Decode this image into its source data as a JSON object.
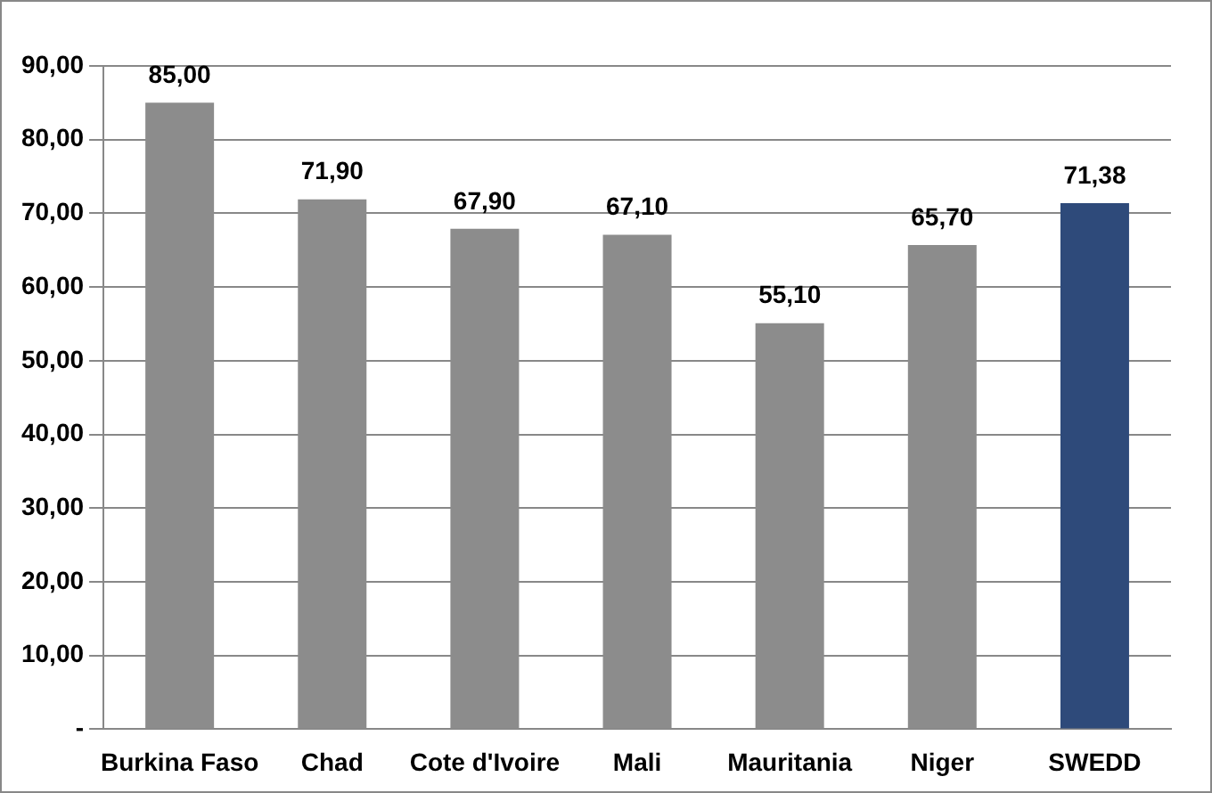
{
  "chart_data": {
    "type": "bar",
    "categories": [
      "Burkina Faso",
      "Chad",
      "Cote d'Ivoire",
      "Mali",
      "Mauritania",
      "Niger",
      "SWEDD"
    ],
    "values": [
      85.0,
      71.9,
      67.9,
      67.1,
      55.1,
      65.7,
      71.38
    ],
    "value_labels": [
      "85,00",
      "71,90",
      "67,90",
      "67,10",
      "55,10",
      "65,70",
      "71,38"
    ],
    "colors": [
      "#8c8c8c",
      "#8c8c8c",
      "#8c8c8c",
      "#8c8c8c",
      "#8c8c8c",
      "#8c8c8c",
      "#2e4a7a"
    ],
    "ylim": [
      0,
      90
    ],
    "yticks": [
      {
        "value": 0,
        "label": "-"
      },
      {
        "value": 10,
        "label": "10,00"
      },
      {
        "value": 20,
        "label": "20,00"
      },
      {
        "value": 30,
        "label": "30,00"
      },
      {
        "value": 40,
        "label": "40,00"
      },
      {
        "value": 50,
        "label": "50,00"
      },
      {
        "value": 60,
        "label": "60,00"
      },
      {
        "value": 70,
        "label": "70,00"
      },
      {
        "value": 80,
        "label": "80,00"
      },
      {
        "value": 90,
        "label": "90,00"
      }
    ],
    "grid": "y"
  }
}
